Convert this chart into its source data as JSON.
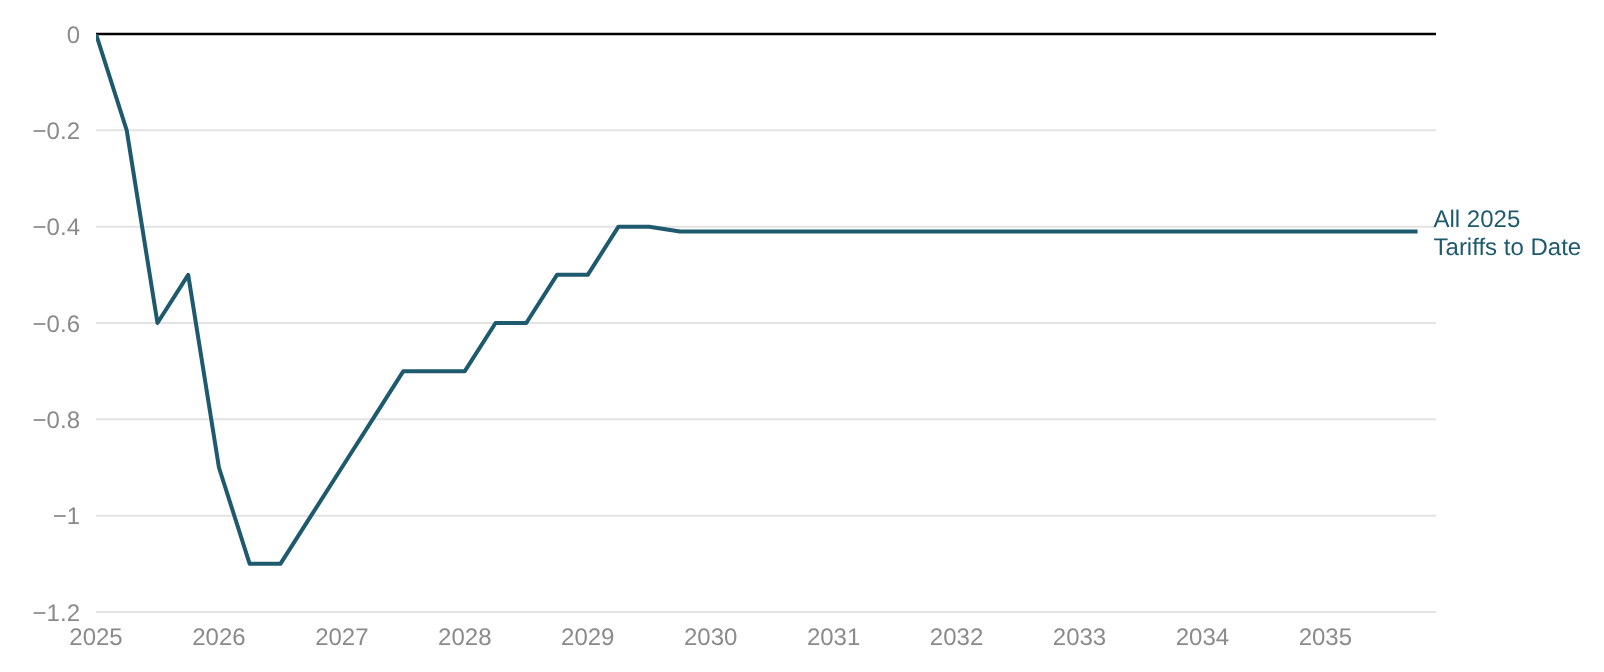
{
  "chart_data": {
    "type": "line",
    "x": [
      2025,
      2025.25,
      2025.5,
      2025.75,
      2026,
      2026.25,
      2026.5,
      2026.75,
      2027,
      2027.25,
      2027.5,
      2027.75,
      2028,
      2028.25,
      2028.5,
      2028.75,
      2029,
      2029.25,
      2029.5,
      2029.75,
      2030,
      2030.25,
      2030.5,
      2030.75,
      2031,
      2031.25,
      2031.5,
      2031.75,
      2032,
      2032.25,
      2032.5,
      2032.75,
      2033,
      2033.25,
      2033.5,
      2033.75,
      2034,
      2034.25,
      2034.5,
      2034.75,
      2035,
      2035.25,
      2035.5,
      2035.75
    ],
    "series": [
      {
        "name": "All 2025 Tariffs to Date",
        "color": "#1e5a6e",
        "values": [
          0,
          -0.2,
          -0.6,
          -0.5,
          -0.9,
          -1.1,
          -1.1,
          -1.0,
          -0.9,
          -0.8,
          -0.7,
          -0.7,
          -0.7,
          -0.6,
          -0.6,
          -0.5,
          -0.5,
          -0.4,
          -0.4,
          -0.41,
          -0.41,
          -0.41,
          -0.41,
          -0.41,
          -0.41,
          -0.41,
          -0.41,
          -0.41,
          -0.41,
          -0.41,
          -0.41,
          -0.41,
          -0.41,
          -0.41,
          -0.41,
          -0.41,
          -0.41,
          -0.41,
          -0.41,
          -0.41,
          -0.41,
          -0.41,
          -0.41,
          -0.41
        ]
      }
    ],
    "xlim": [
      2025,
      2035.9
    ],
    "xticks": [
      2025,
      2026,
      2027,
      2028,
      2029,
      2030,
      2031,
      2032,
      2033,
      2034,
      2035
    ],
    "ylim": [
      -1.2,
      0
    ],
    "yticks": [
      {
        "value": -1.2,
        "label": "−1.2"
      },
      {
        "value": -1,
        "label": "−1"
      },
      {
        "value": -0.8,
        "label": "−0.8"
      },
      {
        "value": -0.6,
        "label": "−0.6"
      },
      {
        "value": -0.4,
        "label": "−0.4"
      },
      {
        "value": -0.2,
        "label": "−0.2"
      },
      0
    ],
    "ref_lines": [
      {
        "axis": "y",
        "value": 0,
        "color": "#000000"
      }
    ],
    "grid": "y",
    "marker": "none",
    "line_style": "solid"
  }
}
